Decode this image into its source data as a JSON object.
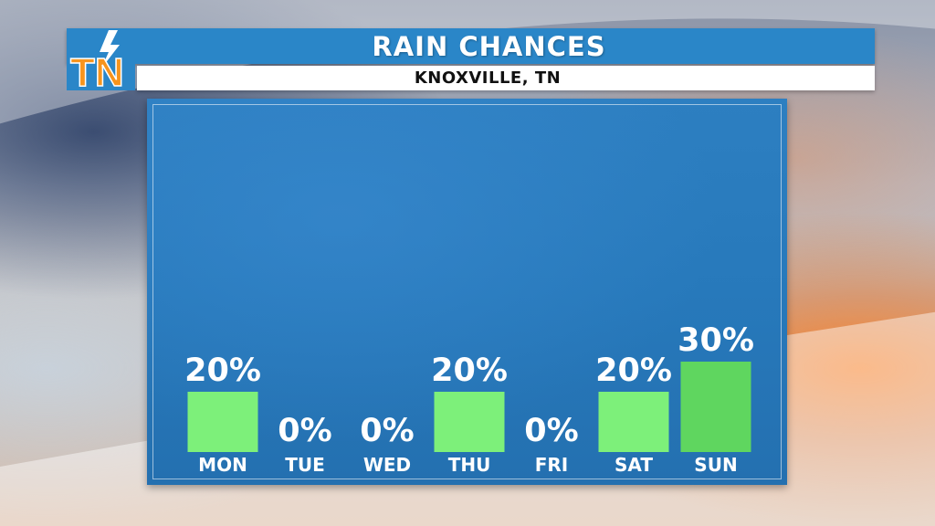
{
  "header": {
    "title": "RAIN CHANCES",
    "subtitle": "KNOXVILLE, TN",
    "logo_text": "TN",
    "logo_icon": "lightning-bolt-icon"
  },
  "colors": {
    "header_blue": "#2a86c8",
    "panel_blue": "#2779bb",
    "bar_green": "#7df07a",
    "bar_green_highlight": "#5fd65f",
    "logo_orange": "#f7941d",
    "text_white": "#ffffff"
  },
  "chart_data": {
    "type": "bar",
    "title": "RAIN CHANCES",
    "subtitle": "KNOXVILLE, TN",
    "categories": [
      "MON",
      "TUE",
      "WED",
      "THU",
      "FRI",
      "SAT",
      "SUN"
    ],
    "values": [
      20,
      0,
      0,
      20,
      0,
      20,
      30
    ],
    "value_labels": [
      "20%",
      "0%",
      "0%",
      "20%",
      "0%",
      "20%",
      "30%"
    ],
    "unit": "%",
    "ylim": [
      0,
      100
    ],
    "grid": false,
    "legend": "none"
  }
}
